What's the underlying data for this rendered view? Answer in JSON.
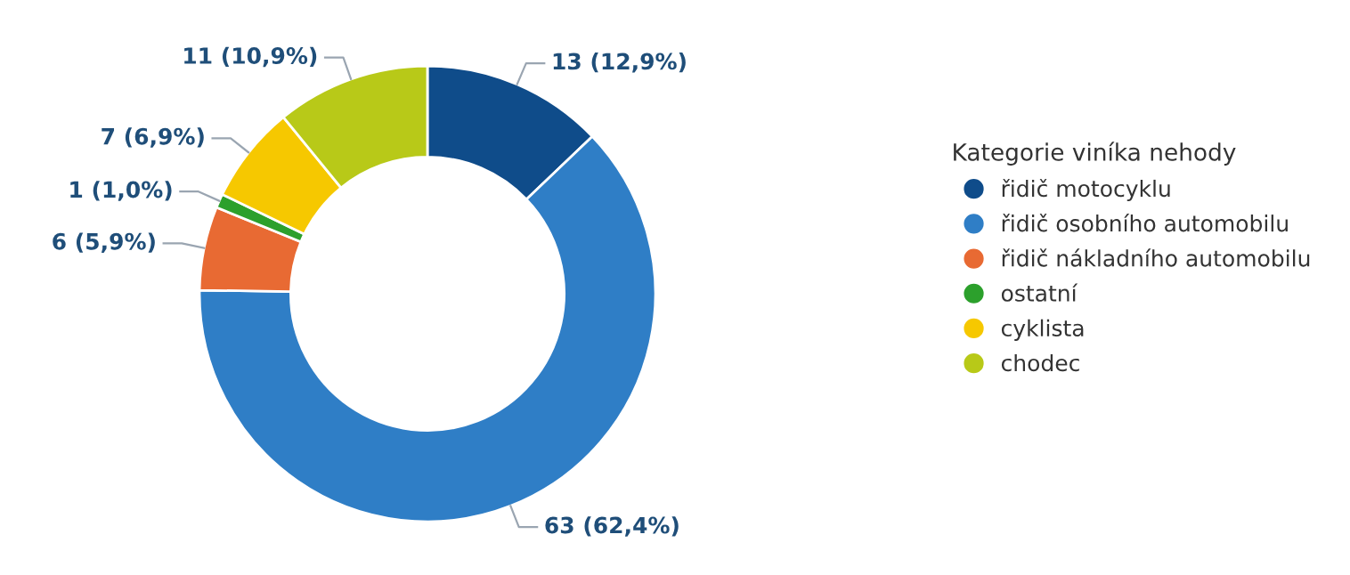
{
  "chart_data": {
    "type": "donut",
    "legend_title": "Kategorie viníka nehody",
    "categories": [
      "řidič motocyklu",
      "řidič osobního automobilu",
      "řidič nákladního automobilu",
      "ostatní",
      "cyklista",
      "chodec"
    ],
    "values": [
      13,
      63,
      6,
      1,
      7,
      11
    ],
    "value_labels": [
      "13 (12,9%)",
      "63 (62,4%)",
      "6 (5,9%)",
      "1 (1,0%)",
      "7 (6,9%)",
      "11 (10,9%)"
    ],
    "colors": [
      "#0f4c8a",
      "#2f7ec6",
      "#e86a33",
      "#2ca02c",
      "#f6c800",
      "#b8c918"
    ],
    "legend": "right"
  }
}
